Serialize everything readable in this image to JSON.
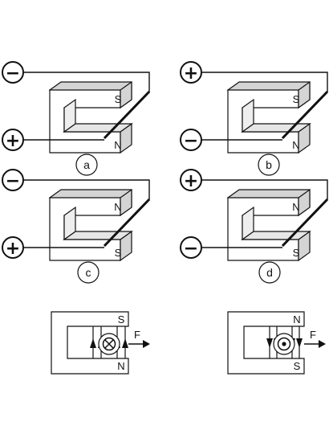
{
  "background": "#ffffff",
  "stroke_color": "#111111",
  "face_color": "#ffffff",
  "shade_color": "#d4d4d4",
  "panels": [
    {
      "caption": "a",
      "top_terminal": "−",
      "bottom_terminal": "+",
      "top_pole": "S",
      "bottom_pole": "N"
    },
    {
      "caption": "b",
      "top_terminal": "+",
      "bottom_terminal": "−",
      "top_pole": "S",
      "bottom_pole": "N"
    },
    {
      "caption": "c",
      "top_terminal": "−",
      "bottom_terminal": "+",
      "top_pole": "N",
      "bottom_pole": "S"
    },
    {
      "caption": "d",
      "top_terminal": "+",
      "bottom_terminal": "−",
      "top_pole": "N",
      "bottom_pole": "S"
    }
  ],
  "field_views": [
    {
      "top_pole": "S",
      "bottom_pole": "N",
      "force_label": "F",
      "current_symbol": "cross",
      "field_direction": "up"
    },
    {
      "top_pole": "N",
      "bottom_pole": "S",
      "force_label": "F",
      "current_symbol": "dot",
      "field_direction": "down"
    }
  ]
}
